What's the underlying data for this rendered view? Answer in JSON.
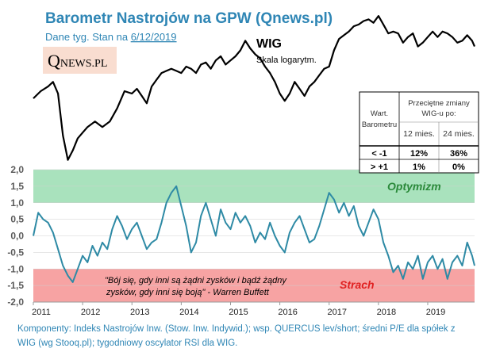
{
  "title": "Barometr Nastrojów  na GPW (Qnews.pl)",
  "subtitle_prefix": "Dane tyg. Stan na ",
  "subtitle_date": "6/12/2019",
  "logo": {
    "q": "Q",
    "rest": "NEWS.PL",
    "bg": "#f9ddd0"
  },
  "wig_label": "WIG",
  "wig_sublabel": "Skala logarytm.",
  "zones": {
    "optimism_label": "Optymizm",
    "fear_label": "Strach",
    "optimism_color": "#a9e2bd",
    "fear_color": "#f7a3a3",
    "optimism_text_color": "#2a8a3a",
    "fear_text_color": "#e02020"
  },
  "quote_line1": "\"Bój się, gdy inni są żądni zysków i bądź żądny",
  "quote_line2": "zysków, gdy inni się boją\" - Warren Buffett",
  "table": {
    "header_col1": [
      "Wart.",
      "Barometru"
    ],
    "header_span": [
      "Przeciętne zmiany",
      "WIG-u po:"
    ],
    "sub_12": "12 mies.",
    "sub_24": "24 mies.",
    "rows": [
      {
        "label": "< -1",
        "v12": "12%",
        "v24": "36%",
        "color": "#22b24c"
      },
      {
        "label": "> +1",
        "v12": "1%",
        "v24": "0%",
        "color": "#000000"
      }
    ]
  },
  "footer_line1": "Komponenty:  Indeks Nastrojów Inw. (Stow.  Inw. Indywid.); wsp. QUERCUS  lev/short; średni P/E dla spółek z",
  "footer_line2": "WIG (wg Stooq.pl); tygodniowy oscylator RSI dla WIG.",
  "chart_data": {
    "type": "line",
    "y_ticks": [
      "2,0",
      "1,5",
      "1,0",
      "0,5",
      "0,0",
      "-0,5",
      "-1,0",
      "-1,5",
      "-2,0"
    ],
    "ylim": [
      -2.0,
      2.0
    ],
    "x_ticks": [
      "2011",
      "2012",
      "2013",
      "2014",
      "2015",
      "2016",
      "2017",
      "2018",
      "2019"
    ],
    "xlim": [
      2011.0,
      2019.95
    ],
    "bands": [
      {
        "name": "Optymizm",
        "from": 1.0,
        "to": 2.0
      },
      {
        "name": "Strach",
        "from": -2.0,
        "to": -1.0
      }
    ],
    "series": [
      {
        "name": "WIG",
        "scale": "log",
        "x": [
          2011.0,
          2011.15,
          2011.3,
          2011.4,
          2011.5,
          2011.6,
          2011.7,
          2011.8,
          2011.9,
          2012.0,
          2012.1,
          2012.25,
          2012.4,
          2012.55,
          2012.7,
          2012.85,
          2013.0,
          2013.1,
          2013.2,
          2013.3,
          2013.4,
          2013.5,
          2013.6,
          2013.7,
          2013.8,
          2013.9,
          2014.0,
          2014.1,
          2014.2,
          2014.3,
          2014.4,
          2014.5,
          2014.6,
          2014.7,
          2014.8,
          2014.9,
          2015.0,
          2015.1,
          2015.2,
          2015.3,
          2015.4,
          2015.5,
          2015.6,
          2015.7,
          2015.8,
          2015.9,
          2016.0,
          2016.1,
          2016.2,
          2016.3,
          2016.4,
          2016.5,
          2016.6,
          2016.7,
          2016.8,
          2016.9,
          2017.0,
          2017.1,
          2017.2,
          2017.3,
          2017.4,
          2017.5,
          2017.6,
          2017.7,
          2017.8,
          2017.9,
          2018.0,
          2018.1,
          2018.2,
          2018.3,
          2018.4,
          2018.5,
          2018.6,
          2018.7,
          2018.8,
          2018.9,
          2019.0,
          2019.1,
          2019.2,
          2019.3,
          2019.4,
          2019.5,
          2019.6,
          2019.7,
          2019.8,
          2019.9,
          2019.95
        ],
        "values": [
          45000,
          46500,
          47500,
          48500,
          46000,
          38000,
          34000,
          35500,
          37500,
          38500,
          39500,
          40500,
          39500,
          40500,
          43000,
          46500,
          46000,
          47000,
          45500,
          44000,
          47500,
          49000,
          50500,
          51000,
          51500,
          51000,
          50500,
          52000,
          51500,
          50500,
          52500,
          53000,
          51500,
          53500,
          54500,
          52500,
          53500,
          54500,
          56000,
          58500,
          56500,
          55000,
          54000,
          52000,
          50500,
          48500,
          46000,
          44500,
          46000,
          48500,
          47000,
          45500,
          47500,
          48500,
          50000,
          51500,
          52000,
          56000,
          59000,
          60000,
          61000,
          62500,
          63000,
          64000,
          64500,
          63500,
          65500,
          63000,
          60500,
          61000,
          60500,
          58000,
          59500,
          60500,
          57000,
          58000,
          59500,
          61000,
          59500,
          61000,
          60500,
          59500,
          58000,
          58500,
          60000,
          58500,
          57000
        ]
      },
      {
        "name": "Barometr",
        "x": [
          2011.0,
          2011.1,
          2011.2,
          2011.3,
          2011.4,
          2011.5,
          2011.6,
          2011.7,
          2011.8,
          2011.9,
          2012.0,
          2012.1,
          2012.2,
          2012.3,
          2012.4,
          2012.5,
          2012.6,
          2012.7,
          2012.8,
          2012.9,
          2013.0,
          2013.1,
          2013.2,
          2013.3,
          2013.4,
          2013.5,
          2013.6,
          2013.7,
          2013.8,
          2013.9,
          2014.0,
          2014.1,
          2014.2,
          2014.3,
          2014.4,
          2014.5,
          2014.6,
          2014.7,
          2014.8,
          2014.9,
          2015.0,
          2015.1,
          2015.2,
          2015.3,
          2015.4,
          2015.5,
          2015.6,
          2015.7,
          2015.8,
          2015.9,
          2016.0,
          2016.1,
          2016.2,
          2016.3,
          2016.4,
          2016.5,
          2016.6,
          2016.7,
          2016.8,
          2016.9,
          2017.0,
          2017.1,
          2017.2,
          2017.3,
          2017.4,
          2017.5,
          2017.6,
          2017.7,
          2017.8,
          2017.9,
          2018.0,
          2018.1,
          2018.2,
          2018.3,
          2018.4,
          2018.5,
          2018.6,
          2018.7,
          2018.8,
          2018.9,
          2019.0,
          2019.1,
          2019.2,
          2019.3,
          2019.4,
          2019.5,
          2019.6,
          2019.7,
          2019.8,
          2019.9,
          2019.95
        ],
        "values": [
          0.0,
          0.7,
          0.5,
          0.4,
          0.1,
          -0.4,
          -0.9,
          -1.2,
          -1.4,
          -1.0,
          -0.6,
          -0.8,
          -0.3,
          -0.6,
          -0.2,
          -0.4,
          0.2,
          0.6,
          0.3,
          -0.1,
          0.2,
          0.4,
          0.0,
          -0.4,
          -0.2,
          -0.1,
          0.4,
          1.0,
          1.3,
          1.5,
          0.9,
          0.3,
          -0.5,
          -0.2,
          0.6,
          1.0,
          0.5,
          0.0,
          0.8,
          0.4,
          0.2,
          0.7,
          0.4,
          0.6,
          0.3,
          -0.2,
          0.1,
          -0.1,
          0.4,
          0.0,
          -0.3,
          -0.5,
          0.1,
          0.4,
          0.6,
          0.2,
          -0.2,
          -0.1,
          0.3,
          0.8,
          1.3,
          1.1,
          0.7,
          1.0,
          0.6,
          0.9,
          0.3,
          0.0,
          0.4,
          0.8,
          0.5,
          -0.2,
          -0.6,
          -1.1,
          -0.9,
          -1.3,
          -0.8,
          -1.0,
          -0.6,
          -1.3,
          -0.8,
          -0.6,
          -1.0,
          -0.7,
          -1.3,
          -0.8,
          -0.6,
          -0.9,
          -0.2,
          -0.6,
          -0.9
        ]
      }
    ]
  }
}
